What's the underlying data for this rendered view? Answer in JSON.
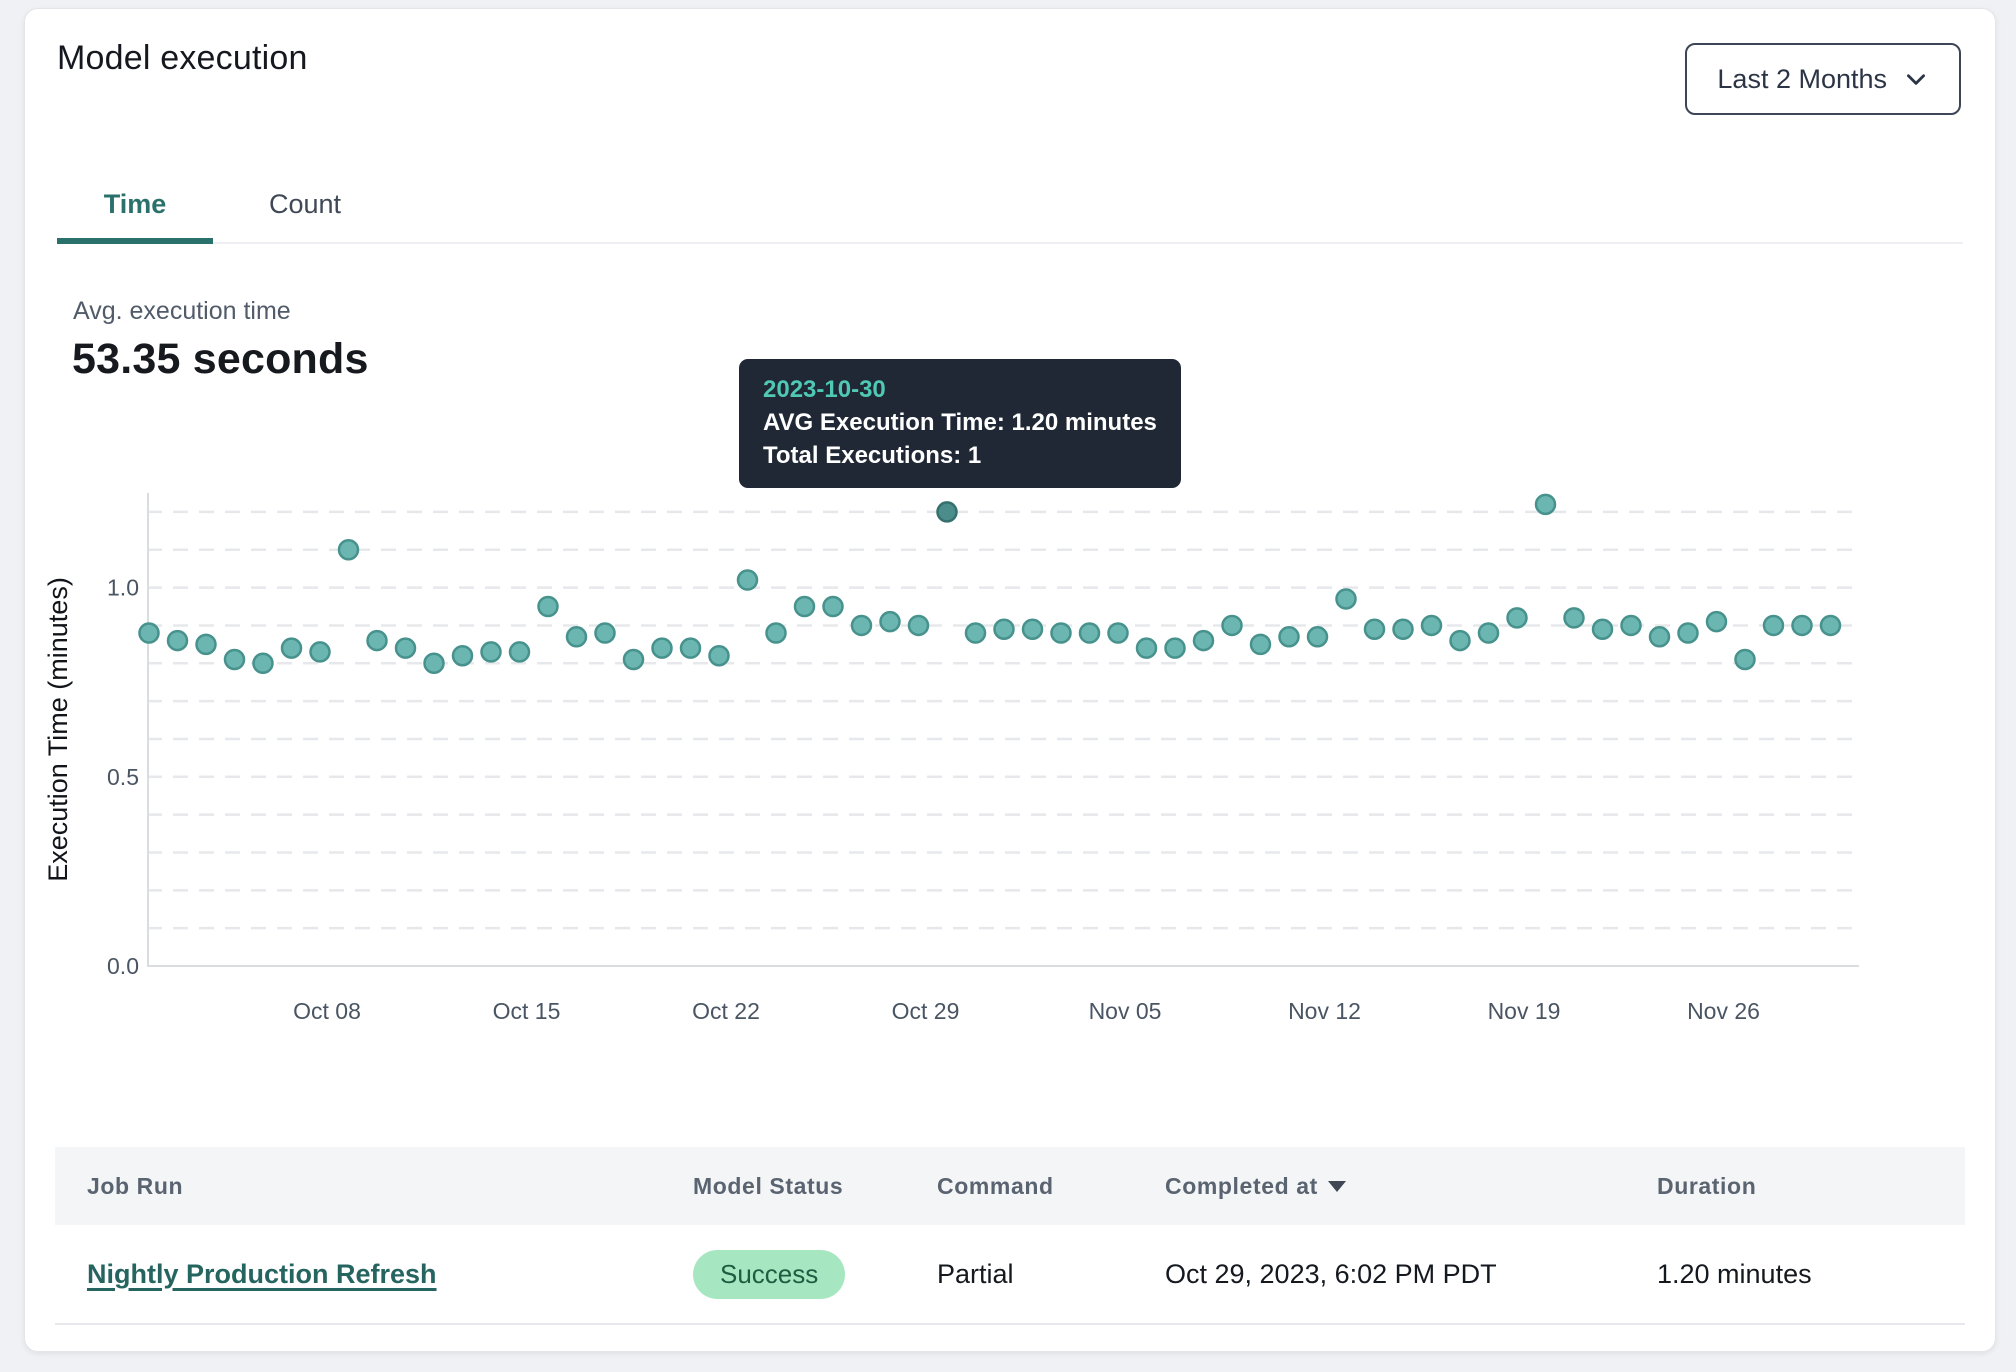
{
  "header": {
    "title": "Model execution",
    "range_selector": {
      "label": "Last 2 Months"
    }
  },
  "tabs": [
    {
      "label": "Time",
      "active": true
    },
    {
      "label": "Count",
      "active": false
    }
  ],
  "stats": {
    "label": "Avg. execution time",
    "value": "53.35 seconds"
  },
  "tooltip": {
    "date": "2023-10-30",
    "lines": [
      "AVG Execution Time: 1.20 minutes",
      "Total Executions: 1"
    ]
  },
  "chart_data": {
    "type": "scatter",
    "title": "",
    "xlabel": "",
    "ylabel": "Execution Time (minutes)",
    "ylim": [
      0,
      1.25
    ],
    "yticks": [
      0.0,
      0.5,
      1.0
    ],
    "grid": "horizontal dashed lines every 0.1 from 0 to 1.2",
    "legend": "none",
    "xticks": [
      {
        "label": "Oct 08",
        "date": "2023-10-08"
      },
      {
        "label": "Oct 15",
        "date": "2023-10-15"
      },
      {
        "label": "Oct 22",
        "date": "2023-10-22"
      },
      {
        "label": "Oct 29",
        "date": "2023-10-29"
      },
      {
        "label": "Nov 05",
        "date": "2023-11-05"
      },
      {
        "label": "Nov 12",
        "date": "2023-11-12"
      },
      {
        "label": "Nov 19",
        "date": "2023-11-19"
      },
      {
        "label": "Nov 26",
        "date": "2023-11-26"
      }
    ],
    "highlight": {
      "date": "2023-10-30",
      "avg_execution_minutes": 1.2,
      "total_executions": 1
    },
    "points": [
      {
        "date": "2023-10-02",
        "value": 0.88
      },
      {
        "date": "2023-10-03",
        "value": 0.86
      },
      {
        "date": "2023-10-04",
        "value": 0.85
      },
      {
        "date": "2023-10-05",
        "value": 0.81
      },
      {
        "date": "2023-10-06",
        "value": 0.8
      },
      {
        "date": "2023-10-07",
        "value": 0.84
      },
      {
        "date": "2023-10-08",
        "value": 0.83
      },
      {
        "date": "2023-10-09",
        "value": 1.1
      },
      {
        "date": "2023-10-10",
        "value": 0.86
      },
      {
        "date": "2023-10-11",
        "value": 0.84
      },
      {
        "date": "2023-10-12",
        "value": 0.8
      },
      {
        "date": "2023-10-13",
        "value": 0.82
      },
      {
        "date": "2023-10-14",
        "value": 0.83
      },
      {
        "date": "2023-10-15",
        "value": 0.83
      },
      {
        "date": "2023-10-16",
        "value": 0.95
      },
      {
        "date": "2023-10-17",
        "value": 0.87
      },
      {
        "date": "2023-10-18",
        "value": 0.88
      },
      {
        "date": "2023-10-19",
        "value": 0.81
      },
      {
        "date": "2023-10-20",
        "value": 0.84
      },
      {
        "date": "2023-10-21",
        "value": 0.84
      },
      {
        "date": "2023-10-22",
        "value": 0.82
      },
      {
        "date": "2023-10-23",
        "value": 1.02
      },
      {
        "date": "2023-10-24",
        "value": 0.88
      },
      {
        "date": "2023-10-25",
        "value": 0.95
      },
      {
        "date": "2023-10-26",
        "value": 0.95
      },
      {
        "date": "2023-10-27",
        "value": 0.9
      },
      {
        "date": "2023-10-28",
        "value": 0.91
      },
      {
        "date": "2023-10-29",
        "value": 0.9
      },
      {
        "date": "2023-10-30",
        "value": 1.2
      },
      {
        "date": "2023-10-31",
        "value": 0.88
      },
      {
        "date": "2023-11-01",
        "value": 0.89
      },
      {
        "date": "2023-11-02",
        "value": 0.89
      },
      {
        "date": "2023-11-03",
        "value": 0.88
      },
      {
        "date": "2023-11-04",
        "value": 0.88
      },
      {
        "date": "2023-11-05",
        "value": 0.88
      },
      {
        "date": "2023-11-06",
        "value": 0.84
      },
      {
        "date": "2023-11-07",
        "value": 0.84
      },
      {
        "date": "2023-11-08",
        "value": 0.86
      },
      {
        "date": "2023-11-09",
        "value": 0.9
      },
      {
        "date": "2023-11-10",
        "value": 0.85
      },
      {
        "date": "2023-11-11",
        "value": 0.87
      },
      {
        "date": "2023-11-12",
        "value": 0.87
      },
      {
        "date": "2023-11-13",
        "value": 0.97
      },
      {
        "date": "2023-11-14",
        "value": 0.89
      },
      {
        "date": "2023-11-15",
        "value": 0.89
      },
      {
        "date": "2023-11-16",
        "value": 0.9
      },
      {
        "date": "2023-11-17",
        "value": 0.86
      },
      {
        "date": "2023-11-18",
        "value": 0.88
      },
      {
        "date": "2023-11-19",
        "value": 0.92
      },
      {
        "date": "2023-11-20",
        "value": 1.22
      },
      {
        "date": "2023-11-21",
        "value": 0.92
      },
      {
        "date": "2023-11-22",
        "value": 0.89
      },
      {
        "date": "2023-11-23",
        "value": 0.9
      },
      {
        "date": "2023-11-24",
        "value": 0.87
      },
      {
        "date": "2023-11-25",
        "value": 0.88
      },
      {
        "date": "2023-11-26",
        "value": 0.91
      },
      {
        "date": "2023-11-27",
        "value": 0.81
      },
      {
        "date": "2023-11-28",
        "value": 0.9
      },
      {
        "date": "2023-11-29",
        "value": 0.9
      },
      {
        "date": "2023-11-30",
        "value": 0.9
      }
    ]
  },
  "table": {
    "columns": [
      {
        "label": "Job Run"
      },
      {
        "label": "Model Status"
      },
      {
        "label": "Command"
      },
      {
        "label": "Completed at",
        "sorted": "desc"
      },
      {
        "label": "Duration"
      }
    ],
    "rows": [
      {
        "job_run": "Nightly Production Refresh",
        "model_status": "Success",
        "command": "Partial",
        "completed_at": "Oct 29, 2023, 6:02 PM PDT",
        "duration": "1.20 minutes"
      }
    ]
  },
  "colors": {
    "accent_teal": "#2a716c",
    "point_fill": "#6cb6b2",
    "point_stroke": "#47928d",
    "highlight_fill": "#4a8d8b",
    "highlight_stroke": "#35706d",
    "tooltip_bg": "#202835",
    "tooltip_date": "#4fc9b3",
    "badge_bg": "#a6e7c1",
    "badge_text": "#205c41",
    "gridline": "#e6e8ec",
    "axis_text": "#4a5563"
  }
}
